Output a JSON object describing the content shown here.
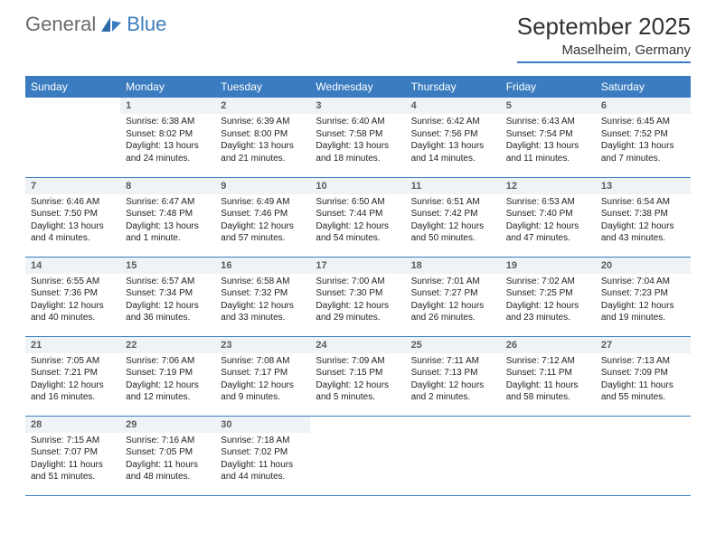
{
  "brand": {
    "general": "General",
    "blue": "Blue"
  },
  "title": "September 2025",
  "location": "Maselheim, Germany",
  "colors": {
    "header_bg": "#3a7cbf",
    "daynum_bg": "#eef3f8",
    "text_gray": "#6b6b6b",
    "text_dark": "#333333"
  },
  "weekdays": [
    "Sunday",
    "Monday",
    "Tuesday",
    "Wednesday",
    "Thursday",
    "Friday",
    "Saturday"
  ],
  "days": [
    {
      "n": "1",
      "sunrise": "6:38 AM",
      "sunset": "8:02 PM",
      "daylight": "13 hours and 24 minutes."
    },
    {
      "n": "2",
      "sunrise": "6:39 AM",
      "sunset": "8:00 PM",
      "daylight": "13 hours and 21 minutes."
    },
    {
      "n": "3",
      "sunrise": "6:40 AM",
      "sunset": "7:58 PM",
      "daylight": "13 hours and 18 minutes."
    },
    {
      "n": "4",
      "sunrise": "6:42 AM",
      "sunset": "7:56 PM",
      "daylight": "13 hours and 14 minutes."
    },
    {
      "n": "5",
      "sunrise": "6:43 AM",
      "sunset": "7:54 PM",
      "daylight": "13 hours and 11 minutes."
    },
    {
      "n": "6",
      "sunrise": "6:45 AM",
      "sunset": "7:52 PM",
      "daylight": "13 hours and 7 minutes."
    },
    {
      "n": "7",
      "sunrise": "6:46 AM",
      "sunset": "7:50 PM",
      "daylight": "13 hours and 4 minutes."
    },
    {
      "n": "8",
      "sunrise": "6:47 AM",
      "sunset": "7:48 PM",
      "daylight": "13 hours and 1 minute."
    },
    {
      "n": "9",
      "sunrise": "6:49 AM",
      "sunset": "7:46 PM",
      "daylight": "12 hours and 57 minutes."
    },
    {
      "n": "10",
      "sunrise": "6:50 AM",
      "sunset": "7:44 PM",
      "daylight": "12 hours and 54 minutes."
    },
    {
      "n": "11",
      "sunrise": "6:51 AM",
      "sunset": "7:42 PM",
      "daylight": "12 hours and 50 minutes."
    },
    {
      "n": "12",
      "sunrise": "6:53 AM",
      "sunset": "7:40 PM",
      "daylight": "12 hours and 47 minutes."
    },
    {
      "n": "13",
      "sunrise": "6:54 AM",
      "sunset": "7:38 PM",
      "daylight": "12 hours and 43 minutes."
    },
    {
      "n": "14",
      "sunrise": "6:55 AM",
      "sunset": "7:36 PM",
      "daylight": "12 hours and 40 minutes."
    },
    {
      "n": "15",
      "sunrise": "6:57 AM",
      "sunset": "7:34 PM",
      "daylight": "12 hours and 36 minutes."
    },
    {
      "n": "16",
      "sunrise": "6:58 AM",
      "sunset": "7:32 PM",
      "daylight": "12 hours and 33 minutes."
    },
    {
      "n": "17",
      "sunrise": "7:00 AM",
      "sunset": "7:30 PM",
      "daylight": "12 hours and 29 minutes."
    },
    {
      "n": "18",
      "sunrise": "7:01 AM",
      "sunset": "7:27 PM",
      "daylight": "12 hours and 26 minutes."
    },
    {
      "n": "19",
      "sunrise": "7:02 AM",
      "sunset": "7:25 PM",
      "daylight": "12 hours and 23 minutes."
    },
    {
      "n": "20",
      "sunrise": "7:04 AM",
      "sunset": "7:23 PM",
      "daylight": "12 hours and 19 minutes."
    },
    {
      "n": "21",
      "sunrise": "7:05 AM",
      "sunset": "7:21 PM",
      "daylight": "12 hours and 16 minutes."
    },
    {
      "n": "22",
      "sunrise": "7:06 AM",
      "sunset": "7:19 PM",
      "daylight": "12 hours and 12 minutes."
    },
    {
      "n": "23",
      "sunrise": "7:08 AM",
      "sunset": "7:17 PM",
      "daylight": "12 hours and 9 minutes."
    },
    {
      "n": "24",
      "sunrise": "7:09 AM",
      "sunset": "7:15 PM",
      "daylight": "12 hours and 5 minutes."
    },
    {
      "n": "25",
      "sunrise": "7:11 AM",
      "sunset": "7:13 PM",
      "daylight": "12 hours and 2 minutes."
    },
    {
      "n": "26",
      "sunrise": "7:12 AM",
      "sunset": "7:11 PM",
      "daylight": "11 hours and 58 minutes."
    },
    {
      "n": "27",
      "sunrise": "7:13 AM",
      "sunset": "7:09 PM",
      "daylight": "11 hours and 55 minutes."
    },
    {
      "n": "28",
      "sunrise": "7:15 AM",
      "sunset": "7:07 PM",
      "daylight": "11 hours and 51 minutes."
    },
    {
      "n": "29",
      "sunrise": "7:16 AM",
      "sunset": "7:05 PM",
      "daylight": "11 hours and 48 minutes."
    },
    {
      "n": "30",
      "sunrise": "7:18 AM",
      "sunset": "7:02 PM",
      "daylight": "11 hours and 44 minutes."
    }
  ],
  "labels": {
    "sunrise": "Sunrise: ",
    "sunset": "Sunset: ",
    "daylight": "Daylight: "
  },
  "start_offset": 1
}
